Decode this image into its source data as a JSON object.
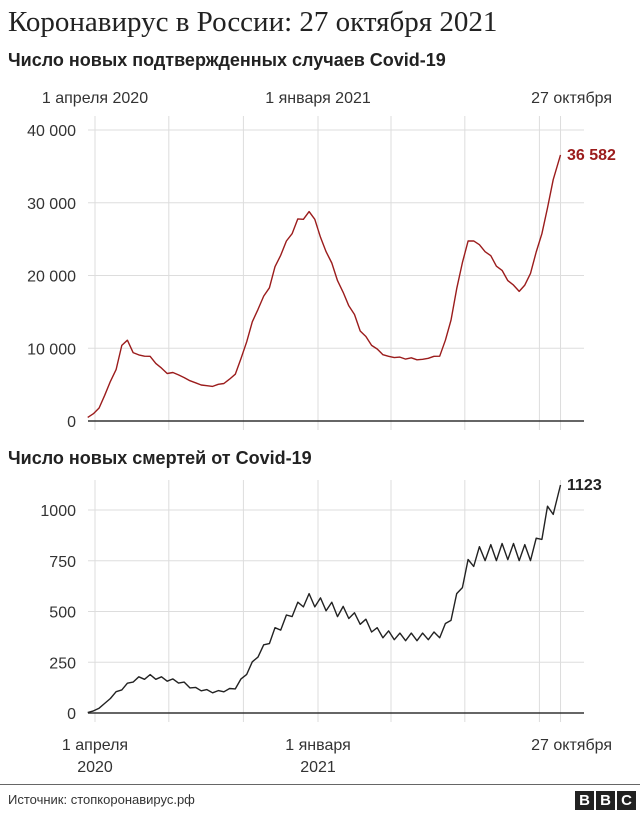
{
  "title": "Коронавирус в России: 27 октября 2021",
  "source": "Источник: стопкоронавирус.рф",
  "logo": [
    "B",
    "B",
    "C"
  ],
  "colors": {
    "cases": "#9b1c1c",
    "deaths": "#222222",
    "grid": "#dddddd"
  },
  "chart_data": [
    {
      "type": "line",
      "title": "Число новых подтвержденных случаев Covid-19",
      "x_start": "2020-03-23",
      "x_step_days": 7,
      "x_end": "2021-10-27",
      "x_tick_labels": [
        "1 апреля 2020",
        "1 января 2021",
        "27 октября"
      ],
      "y_ticks": [
        0,
        10000,
        20000,
        30000,
        40000
      ],
      "y_tick_labels": [
        "0",
        "10 000",
        "20 000",
        "30 000",
        "40 000"
      ],
      "ylim": [
        0,
        40000
      ],
      "annotation": "36 582",
      "values": [
        500,
        1000,
        1800,
        3500,
        5500,
        7000,
        10500,
        11000,
        9500,
        9000,
        9000,
        8800,
        8000,
        7200,
        6600,
        6600,
        6400,
        5900,
        5600,
        5200,
        5000,
        4800,
        4800,
        5000,
        5200,
        5700,
        6500,
        8500,
        11000,
        13500,
        15500,
        17000,
        18500,
        21000,
        23000,
        24500,
        26000,
        27500,
        28000,
        28500,
        28000,
        25000,
        23500,
        21500,
        19500,
        17500,
        16000,
        14500,
        12500,
        11500,
        10500,
        9800,
        9200,
        8800,
        8800,
        8700,
        8600,
        8600,
        8500,
        8400,
        8700,
        8800,
        9000,
        11000,
        14000,
        18000,
        22000,
        24500,
        25000,
        24000,
        23500,
        22500,
        21500,
        20500,
        19500,
        18500,
        18000,
        18500,
        20500,
        23000,
        26000,
        29000,
        33500,
        36582
      ]
    },
    {
      "type": "line",
      "title": "Число новых смертей от Covid-19",
      "x_start": "2020-03-23",
      "x_step_days": 7,
      "x_end": "2021-10-27",
      "x_tick_labels": [
        [
          "1 апреля",
          "2020"
        ],
        [
          "1 января",
          "2021"
        ],
        [
          "27 октября"
        ]
      ],
      "y_ticks": [
        0,
        250,
        500,
        750,
        1000
      ],
      "y_tick_labels": [
        "0",
        "250",
        "500",
        "750",
        "1000"
      ],
      "ylim": [
        0,
        1150
      ],
      "annotation": "1123",
      "values": [
        2,
        10,
        25,
        45,
        75,
        100,
        120,
        140,
        160,
        170,
        175,
        180,
        175,
        170,
        165,
        160,
        155,
        145,
        130,
        120,
        115,
        110,
        105,
        105,
        110,
        115,
        125,
        160,
        200,
        240,
        290,
        320,
        360,
        400,
        430,
        460,
        500,
        520,
        550,
        560,
        550,
        540,
        530,
        520,
        500,
        500,
        490,
        470,
        460,
        440,
        420,
        400,
        390,
        385,
        380,
        375,
        375,
        375,
        375,
        375,
        380,
        380,
        390,
        420,
        480,
        560,
        650,
        720,
        760,
        780,
        790,
        790,
        790,
        795,
        795,
        795,
        790,
        790,
        790,
        820,
        900,
        970,
        1030,
        1123
      ]
    }
  ]
}
